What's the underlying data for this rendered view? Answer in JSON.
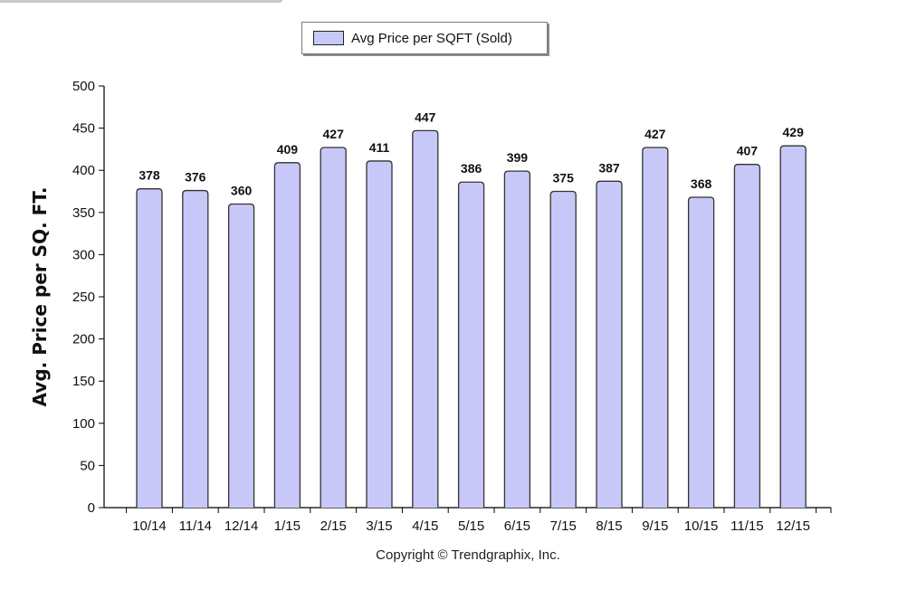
{
  "chart_data": {
    "type": "bar",
    "categories": [
      "10/14",
      "11/14",
      "12/14",
      "1/15",
      "2/15",
      "3/15",
      "4/15",
      "5/15",
      "6/15",
      "7/15",
      "8/15",
      "9/15",
      "10/15",
      "11/15",
      "12/15"
    ],
    "series": [
      {
        "name": "Avg Price per SQFT (Sold)",
        "values": [
          378,
          376,
          360,
          409,
          427,
          411,
          447,
          386,
          399,
          375,
          387,
          427,
          368,
          407,
          429
        ]
      }
    ],
    "ylabel": "Avg. Price per SQ. FT.",
    "xlabel": "",
    "ylim": [
      0,
      500
    ],
    "yticks": [
      0,
      50,
      100,
      150,
      200,
      250,
      300,
      350,
      400,
      450,
      500
    ],
    "grid": false,
    "legend_position": "top-center",
    "bar_color": "#c8c8f8",
    "bar_border_color": "#333333"
  },
  "footer": {
    "copyright": "Copyright © Trendgraphix, Inc."
  }
}
